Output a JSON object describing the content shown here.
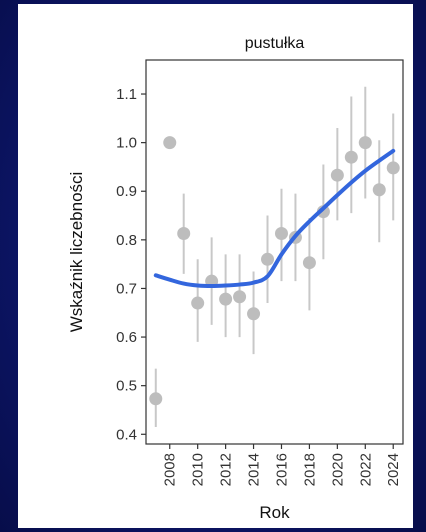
{
  "chart_data": {
    "type": "scatter",
    "title": "pustułka",
    "xlabel": "Rok",
    "ylabel": "Wskaźnik liczebności",
    "xlim": [
      2006.3,
      2024.7
    ],
    "ylim": [
      0.38,
      1.17
    ],
    "x_ticks": [
      "2008",
      "2010",
      "2012",
      "2014",
      "2016",
      "2018",
      "2020",
      "2022",
      "2024"
    ],
    "y_ticks": [
      "0.4",
      "0.5",
      "0.6",
      "0.7",
      "0.8",
      "0.9",
      "1.0",
      "1.1"
    ],
    "grid": false,
    "legend": "none",
    "points": [
      {
        "x": 2007,
        "y": 0.473,
        "lo": 0.415,
        "hi": 0.535
      },
      {
        "x": 2008,
        "y": 1.0,
        "lo": 1.0,
        "hi": 1.0
      },
      {
        "x": 2009,
        "y": 0.813,
        "lo": 0.73,
        "hi": 0.895
      },
      {
        "x": 2010,
        "y": 0.67,
        "lo": 0.59,
        "hi": 0.76
      },
      {
        "x": 2011,
        "y": 0.715,
        "lo": 0.625,
        "hi": 0.805
      },
      {
        "x": 2012,
        "y": 0.678,
        "lo": 0.6,
        "hi": 0.77
      },
      {
        "x": 2013,
        "y": 0.683,
        "lo": 0.6,
        "hi": 0.77
      },
      {
        "x": 2014,
        "y": 0.648,
        "lo": 0.565,
        "hi": 0.735
      },
      {
        "x": 2015,
        "y": 0.76,
        "lo": 0.67,
        "hi": 0.85
      },
      {
        "x": 2016,
        "y": 0.813,
        "lo": 0.715,
        "hi": 0.905
      },
      {
        "x": 2017,
        "y": 0.805,
        "lo": 0.715,
        "hi": 0.895
      },
      {
        "x": 2018,
        "y": 0.753,
        "lo": 0.655,
        "hi": 0.845
      },
      {
        "x": 2019,
        "y": 0.858,
        "lo": 0.76,
        "hi": 0.955
      },
      {
        "x": 2020,
        "y": 0.933,
        "lo": 0.84,
        "hi": 1.03
      },
      {
        "x": 2021,
        "y": 0.97,
        "lo": 0.855,
        "hi": 1.095
      },
      {
        "x": 2022,
        "y": 1.0,
        "lo": 0.885,
        "hi": 1.115
      },
      {
        "x": 2023,
        "y": 0.903,
        "lo": 0.795,
        "hi": 1.005
      },
      {
        "x": 2024,
        "y": 0.948,
        "lo": 0.84,
        "hi": 1.06
      }
    ],
    "trend": {
      "x": [
        2007,
        2008,
        2009,
        2010,
        2011,
        2012,
        2013,
        2014,
        2015,
        2016,
        2017,
        2018,
        2019,
        2020,
        2021,
        2022,
        2023,
        2024
      ],
      "y": [
        0.727,
        0.718,
        0.71,
        0.706,
        0.705,
        0.706,
        0.708,
        0.712,
        0.725,
        0.77,
        0.808,
        0.838,
        0.865,
        0.892,
        0.918,
        0.942,
        0.963,
        0.983
      ]
    },
    "colors": {
      "points": "#bdbdbd",
      "error_bars": "#c8c8c8",
      "trend": "#3366dd",
      "panel_border": "#333333"
    }
  }
}
